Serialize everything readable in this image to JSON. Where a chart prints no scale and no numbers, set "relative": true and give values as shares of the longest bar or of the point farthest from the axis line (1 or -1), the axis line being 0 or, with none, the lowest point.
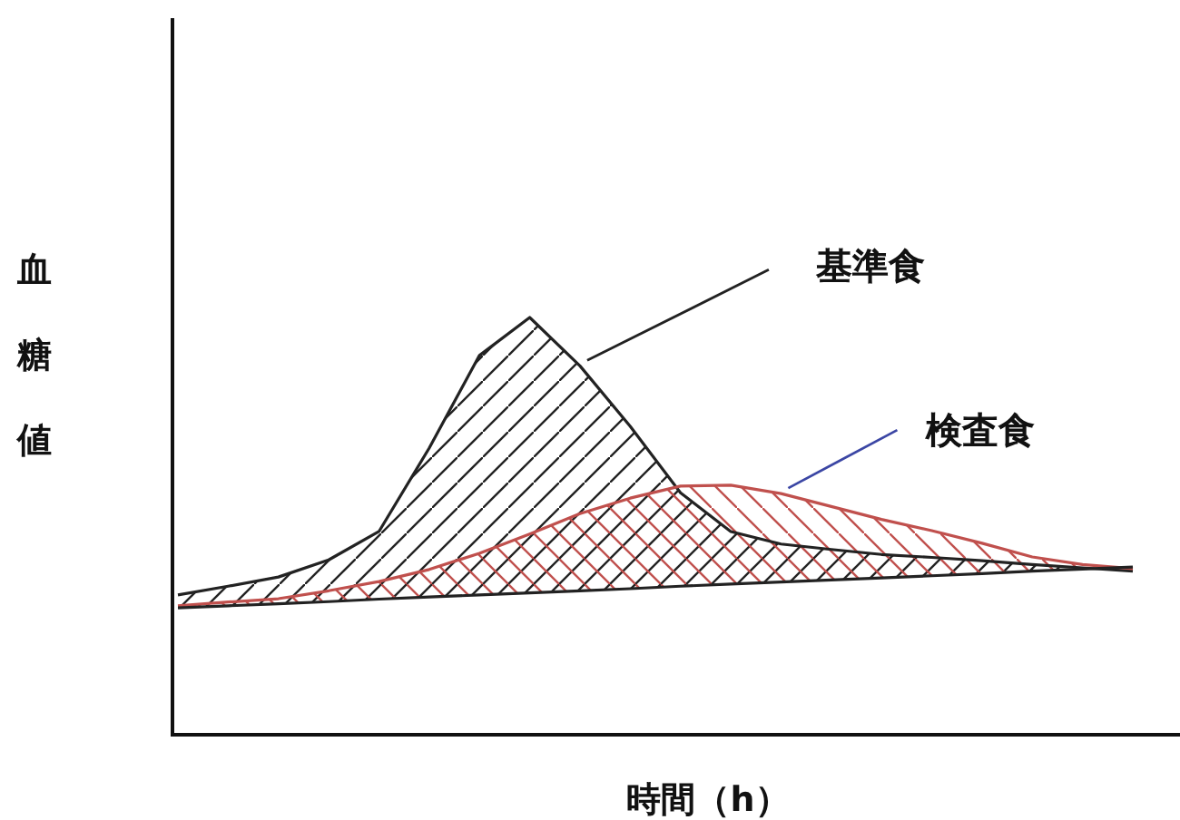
{
  "chart_data": {
    "type": "line",
    "relative": true,
    "xlabel": "時間（h）",
    "ylabel": "血糖値",
    "categories": [
      null,
      null,
      null,
      null,
      null,
      null,
      null,
      null,
      null,
      null,
      null,
      null,
      null,
      null,
      null,
      null,
      null,
      null,
      null,
      null
    ],
    "series": [
      {
        "name": "基準食",
        "color": "#222222",
        "values": [
          0.335,
          0.356,
          0.378,
          0.419,
          0.487,
          0.687,
          0.909,
          1,
          0.884,
          0.739,
          0.58,
          0.487,
          0.457,
          0.444,
          0.432,
          0.425,
          0.417,
          0.408,
          0.4,
          0.392
        ],
        "lower": [
          0.304,
          0.309,
          0.314,
          0.319,
          0.325,
          0.33,
          0.335,
          0.34,
          0.345,
          0.35,
          0.356,
          0.361,
          0.366,
          0.371,
          0.376,
          0.381,
          0.386,
          0.392,
          0.397,
          0.402
        ],
        "upper": [
          0.335,
          0.356,
          0.378,
          0.419,
          0.487,
          0.687,
          0.909,
          1,
          0.884,
          0.739,
          0.58,
          0.487,
          0.457,
          0.444,
          0.432,
          0.425,
          0.417,
          0.408,
          0.4,
          0.392
        ]
      },
      {
        "name": "検査食",
        "color": "#c0504d",
        "values": [
          0.309,
          0.318,
          0.326,
          0.345,
          0.367,
          0.396,
          0.435,
          0.481,
          0.53,
          0.567,
          0.596,
          0.598,
          0.578,
          0.547,
          0.516,
          0.489,
          0.459,
          0.426,
          0.408,
          0.398
        ],
        "lower": [
          0.304,
          0.309,
          0.314,
          0.319,
          0.325,
          0.33,
          0.335,
          0.34,
          0.345,
          0.35,
          0.356,
          0.361,
          0.366,
          0.371,
          0.376,
          0.381,
          0.386,
          0.392,
          0.397,
          0.402
        ],
        "upper": [
          0.309,
          0.318,
          0.326,
          0.345,
          0.367,
          0.396,
          0.435,
          0.481,
          0.53,
          0.567,
          0.596,
          0.598,
          0.578,
          0.547,
          0.516,
          0.489,
          0.459,
          0.426,
          0.408,
          0.398
        ]
      },
      {
        "color": "#222222",
        "values": [
          0.304,
          0.309,
          0.314,
          0.319,
          0.325,
          0.33,
          0.335,
          0.34,
          0.345,
          0.35,
          0.356,
          0.361,
          0.366,
          0.371,
          0.376,
          0.381,
          0.386,
          0.392,
          0.397,
          0.402
        ]
      }
    ]
  }
}
